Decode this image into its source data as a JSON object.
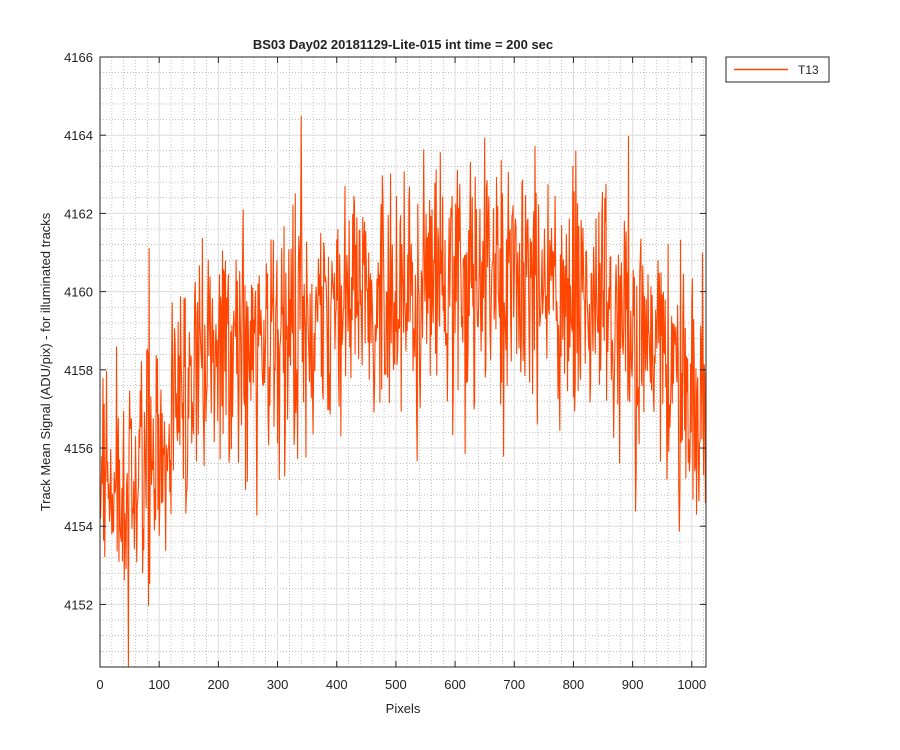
{
  "chart_data": {
    "type": "line",
    "title": "BS03 Day02 20181129-Lite-015 int time = 200 sec",
    "xlabel": "Pixels",
    "ylabel": "Track Mean Signal (ADU/pix) - for illuminated tracks",
    "xlim": [
      0,
      1024
    ],
    "ylim": [
      4150.4,
      4166
    ],
    "x_ticks": [
      0,
      100,
      200,
      300,
      400,
      500,
      600,
      700,
      800,
      900,
      1000
    ],
    "y_ticks": [
      4152,
      4154,
      4156,
      4158,
      4160,
      4162,
      4164,
      4166
    ],
    "grid": "major and minor",
    "legend_position": "outside top-right",
    "series": [
      {
        "name": "T13",
        "color": "#FF4500",
        "x": [
          0,
          25,
          50,
          75,
          100,
          125,
          150,
          175,
          200,
          225,
          250,
          275,
          300,
          325,
          350,
          375,
          400,
          425,
          450,
          475,
          500,
          525,
          550,
          575,
          600,
          625,
          650,
          675,
          700,
          725,
          750,
          775,
          800,
          825,
          850,
          875,
          900,
          925,
          950,
          975,
          1000,
          1024
        ],
        "y": [
          4155.2,
          4155.0,
          4154.5,
          4155.6,
          4156.0,
          4157.0,
          4157.8,
          4158.0,
          4158.3,
          4158.5,
          4158.7,
          4159.0,
          4159.1,
          4159.3,
          4159.5,
          4159.6,
          4159.7,
          4159.8,
          4159.9,
          4160.0,
          4160.0,
          4160.1,
          4160.2,
          4160.2,
          4160.3,
          4160.3,
          4160.3,
          4160.2,
          4160.2,
          4160.1,
          4160.0,
          4159.9,
          4159.7,
          4159.6,
          4159.4,
          4159.2,
          4158.8,
          4158.6,
          4158.3,
          4158.0,
          4157.5,
          4157.2
        ],
        "noise_amplitude": 1.6
      }
    ]
  }
}
